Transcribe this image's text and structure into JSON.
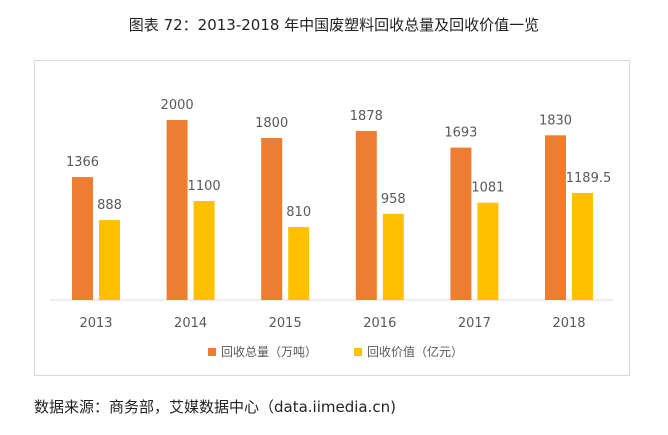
{
  "title": "图表 72：2013-2018 年中国废塑料回收总量及回收价值一览",
  "source": "数据来源：商务部，艾媒数据中心（data.iimedia.cn)",
  "chart_data": {
    "type": "bar",
    "categories": [
      "2013",
      "2014",
      "2015",
      "2016",
      "2017",
      "2018"
    ],
    "series": [
      {
        "name": "回收总量（万吨）",
        "values": [
          1366,
          2000,
          1800,
          1878,
          1693,
          1830
        ],
        "labels": [
          "1366",
          "2000",
          "1800",
          "1878",
          "1693",
          "1830"
        ],
        "color": "#ED7D31"
      },
      {
        "name": "回收价值（亿元）",
        "values": [
          888,
          1100,
          810,
          958,
          1081,
          1189.5
        ],
        "labels": [
          "888",
          "1100",
          "810",
          "958",
          "1081",
          "1189.5"
        ],
        "color": "#FFC000"
      }
    ],
    "ylim": [
      0,
      2000
    ],
    "legend": "bottom",
    "grid": false
  }
}
